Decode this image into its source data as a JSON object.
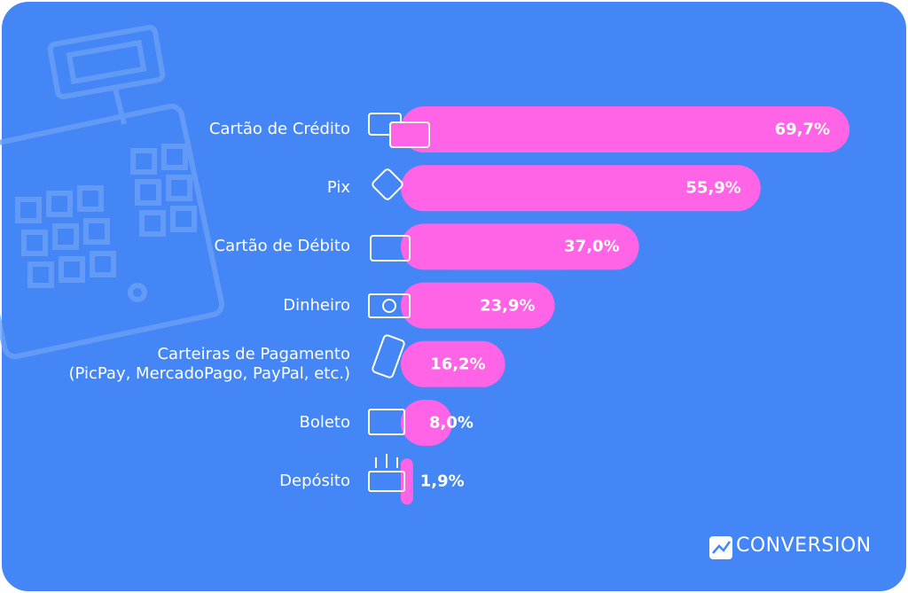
{
  "chart_data": {
    "type": "bar",
    "orientation": "horizontal",
    "color": "#ff63e6",
    "categories": [
      "Cartão de Crédito",
      "Pix",
      "Cartão de Débito",
      "Dinheiro",
      "Carteiras de Pagamento\n(PicPay, MercadoPago, PayPal, etc.)",
      "Boleto",
      "Depósito"
    ],
    "values": [
      69.7,
      55.9,
      37.0,
      23.9,
      16.2,
      8.0,
      1.9
    ],
    "value_labels": [
      "69,7%",
      "55,9%",
      "37,0%",
      "23,9%",
      "16,2%",
      "8,0%",
      "1,9%"
    ],
    "brand": "CONVERSION"
  }
}
